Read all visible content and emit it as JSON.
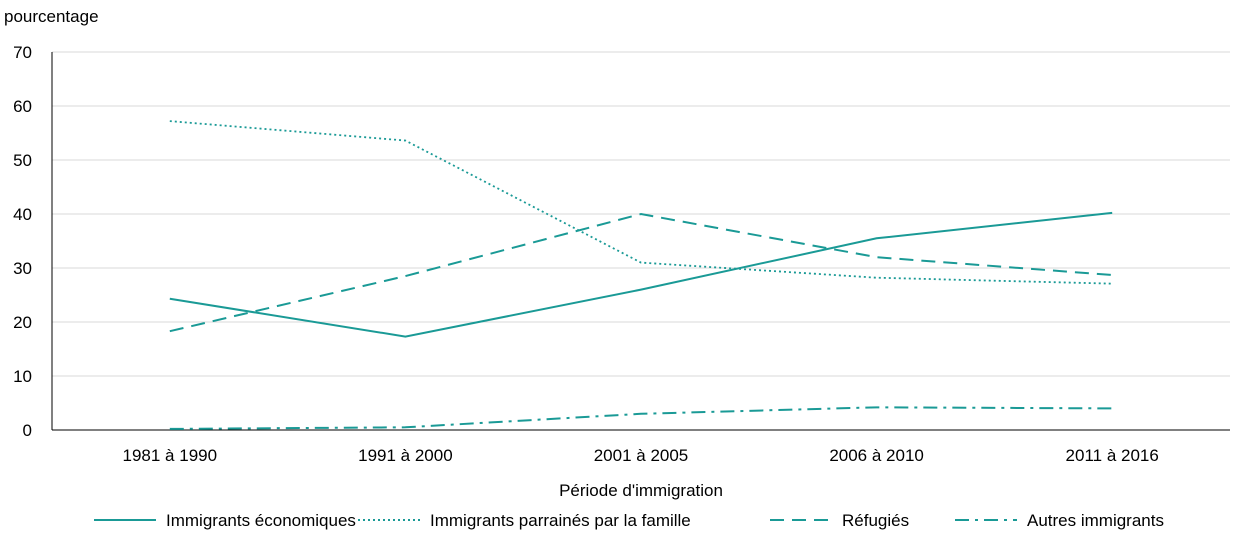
{
  "chart_data": {
    "type": "line",
    "title": "",
    "ylabel": "pourcentage",
    "xlabel": "Période d'immigration",
    "categories": [
      "1981 à 1990",
      "1991 à 2000",
      "2001 à 2005",
      "2006 à 2010",
      "2011 à 2016"
    ],
    "ylim": [
      0,
      70
    ],
    "yticks": [
      0,
      10,
      20,
      30,
      40,
      50,
      60,
      70
    ],
    "grid": "horizontal",
    "legend_position": "bottom",
    "line_color": "#1a9a96",
    "series": [
      {
        "name": "Immigrants économiques",
        "style": "solid",
        "values": [
          24.3,
          17.3,
          26.0,
          35.5,
          40.2
        ]
      },
      {
        "name": "Immigrants parrainés par la famille",
        "style": "dotted",
        "values": [
          57.2,
          53.6,
          31.0,
          28.2,
          27.1
        ]
      },
      {
        "name": "Réfugiés",
        "style": "dashed",
        "values": [
          18.3,
          28.5,
          40.0,
          32.0,
          28.7
        ]
      },
      {
        "name": "Autres immigrants",
        "style": "dashdot",
        "values": [
          0.2,
          0.5,
          3.0,
          4.2,
          4.0
        ]
      }
    ]
  }
}
